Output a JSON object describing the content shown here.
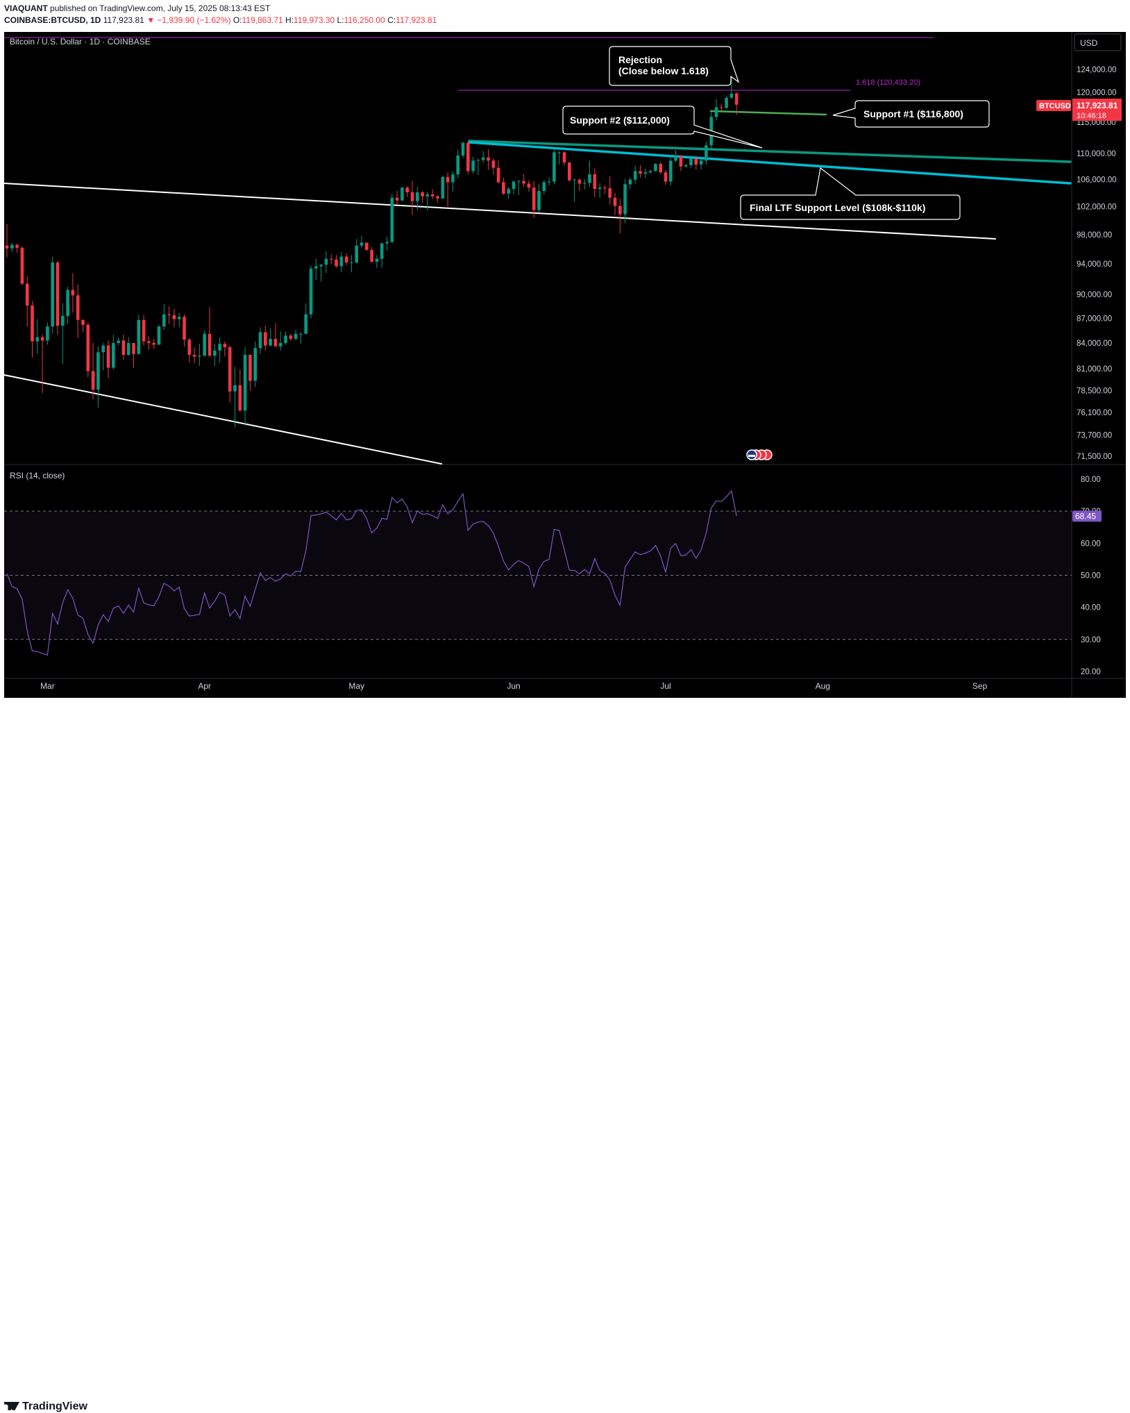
{
  "header": {
    "author": "VIAQUANT",
    "published": "published on TradingView.com, July 15, 2025 08:13:43 EST",
    "symbol": "COINBASE:BTCUSD, 1D",
    "last": "117,923.81",
    "change": "▼ −1,939.90 (−1.62%)",
    "o_label": "O:",
    "o_val": "119,863.71",
    "h_label": "H:",
    "h_val": "119,973.30",
    "l_label": "L:",
    "l_val": "116,250.00",
    "c_label": "C:",
    "c_val": "117,923.81"
  },
  "footer": {
    "brand": "TradingView"
  },
  "main_pane": {
    "title": "Bitcoin / U.S. Dollar · 1D · COINBASE",
    "currency_button": "USD",
    "price_label_symbol": "BTCUSD",
    "price_label_value": "117,923.81",
    "price_label_timer": "10:46:18",
    "y_ticks": [
      "124,000.00",
      "120,000.00",
      "115,000.00",
      "110,000.00",
      "106,000.00",
      "102,000.00",
      "98,000.00",
      "94,000.00",
      "90,000.00",
      "87,000.00",
      "84,000.00",
      "81,000.00",
      "78,500.00",
      "76,100.00",
      "73,700.00",
      "71,500.00"
    ],
    "annotations": {
      "rejection_line1": "Rejection",
      "rejection_line2": "(Close below 1.618)",
      "support2": "Support #2 ($112,000)",
      "support1": "Support #1 ($116,800)",
      "final_ltf": "Final LTF Support Level ($108k-$110k)",
      "fib_label": "1.618 (120,433.20)"
    }
  },
  "rsi_pane": {
    "title": "RSI (14, close)",
    "y_ticks": [
      "80.00",
      "70.00",
      "60.00",
      "50.00",
      "40.00",
      "30.00",
      "20.00"
    ],
    "current": "68.45"
  },
  "x_axis": {
    "labels": [
      "Mar",
      "Apr",
      "May",
      "Jun",
      "Jul",
      "Aug",
      "Sep"
    ]
  },
  "colors": {
    "up": "#089981",
    "down": "#f23645",
    "rsi": "#7e57c2",
    "fib": "#c026d3",
    "support_green": "#4caf50",
    "channel_cyan": "#00bcd4",
    "channel_teal": "#089981"
  },
  "chart_data": {
    "type": "candlestick",
    "title": "Bitcoin / U.S. Dollar · 1D · COINBASE",
    "x_range": [
      "2025-02-21",
      "2025-07-15"
    ],
    "y_axis": "log price, USD",
    "ylim": [
      71000,
      125000
    ],
    "candles": [
      [
        "2025-02-21",
        96500,
        99500,
        94900,
        96100
      ],
      [
        "2025-02-22",
        96100,
        96900,
        95600,
        96600
      ],
      [
        "2025-02-23",
        96600,
        96800,
        95500,
        96200
      ],
      [
        "2025-02-24",
        96200,
        96400,
        91200,
        91400
      ],
      [
        "2025-02-25",
        91400,
        92400,
        86000,
        88600
      ],
      [
        "2025-02-26",
        88600,
        89200,
        82300,
        84200
      ],
      [
        "2025-02-27",
        84200,
        86900,
        82700,
        84700
      ],
      [
        "2025-02-28",
        84700,
        85000,
        78200,
        84300
      ],
      [
        "2025-03-01",
        84300,
        86500,
        83800,
        86000
      ],
      [
        "2025-03-02",
        86000,
        95000,
        85200,
        94200
      ],
      [
        "2025-03-03",
        94200,
        94400,
        85000,
        86100
      ],
      [
        "2025-03-04",
        86100,
        88900,
        81500,
        87300
      ],
      [
        "2025-03-05",
        87300,
        91000,
        86300,
        90600
      ],
      [
        "2025-03-06",
        90600,
        92800,
        87700,
        89900
      ],
      [
        "2025-03-07",
        89900,
        91300,
        84600,
        86800
      ],
      [
        "2025-03-08",
        86800,
        86900,
        85300,
        86200
      ],
      [
        "2025-03-09",
        86200,
        86500,
        80000,
        80700
      ],
      [
        "2025-03-10",
        80700,
        84000,
        77500,
        78600
      ],
      [
        "2025-03-11",
        78600,
        83600,
        76600,
        82900
      ],
      [
        "2025-03-12",
        82900,
        84000,
        80800,
        83700
      ],
      [
        "2025-03-13",
        83700,
        84300,
        79900,
        81100
      ],
      [
        "2025-03-14",
        81100,
        85000,
        80900,
        84000
      ],
      [
        "2025-03-15",
        84000,
        84700,
        83700,
        84300
      ],
      [
        "2025-03-16",
        84300,
        85000,
        82000,
        82600
      ],
      [
        "2025-03-17",
        82600,
        84700,
        82500,
        84000
      ],
      [
        "2025-03-18",
        84000,
        84000,
        81100,
        82700
      ],
      [
        "2025-03-19",
        82700,
        87400,
        82600,
        86800
      ],
      [
        "2025-03-20",
        86800,
        87400,
        83700,
        84200
      ],
      [
        "2025-03-21",
        84200,
        84800,
        83200,
        84000
      ],
      [
        "2025-03-22",
        84000,
        84500,
        83300,
        83800
      ],
      [
        "2025-03-23",
        83800,
        86200,
        83800,
        86000
      ],
      [
        "2025-03-24",
        86000,
        88800,
        85600,
        87500
      ],
      [
        "2025-03-25",
        87500,
        88500,
        86300,
        87400
      ],
      [
        "2025-03-26",
        87400,
        88200,
        85900,
        86900
      ],
      [
        "2025-03-27",
        86900,
        87700,
        85900,
        87200
      ],
      [
        "2025-03-28",
        87200,
        87500,
        83600,
        84400
      ],
      [
        "2025-03-29",
        84400,
        84600,
        81700,
        82600
      ],
      [
        "2025-03-30",
        82600,
        83500,
        81600,
        82400
      ],
      [
        "2025-03-31",
        82400,
        83900,
        81300,
        82500
      ],
      [
        "2025-04-01",
        82500,
        85500,
        82400,
        85100
      ],
      [
        "2025-04-02",
        85100,
        88400,
        82300,
        82500
      ],
      [
        "2025-04-03",
        82500,
        83900,
        81300,
        83100
      ],
      [
        "2025-04-04",
        83100,
        84700,
        81700,
        83900
      ],
      [
        "2025-04-05",
        83900,
        84200,
        82400,
        83500
      ],
      [
        "2025-04-06",
        83500,
        83700,
        77200,
        78400
      ],
      [
        "2025-04-07",
        78400,
        81200,
        74500,
        79100
      ],
      [
        "2025-04-08",
        79100,
        80900,
        76200,
        76300
      ],
      [
        "2025-04-09",
        76300,
        83500,
        74600,
        82600
      ],
      [
        "2025-04-10",
        82600,
        82700,
        78500,
        79600
      ],
      [
        "2025-04-11",
        79600,
        84200,
        78900,
        83400
      ],
      [
        "2025-04-12",
        83400,
        85900,
        82700,
        85300
      ],
      [
        "2025-04-13",
        85300,
        86100,
        83100,
        83700
      ],
      [
        "2025-04-14",
        83700,
        85800,
        83600,
        84500
      ],
      [
        "2025-04-15",
        84500,
        86400,
        83600,
        83600
      ],
      [
        "2025-04-16",
        83600,
        85400,
        83100,
        84000
      ],
      [
        "2025-04-17",
        84000,
        85400,
        83800,
        84900
      ],
      [
        "2025-04-18",
        84900,
        85100,
        84300,
        84500
      ],
      [
        "2025-04-19",
        84500,
        85600,
        84300,
        85100
      ],
      [
        "2025-04-20",
        85100,
        85300,
        83900,
        85100
      ],
      [
        "2025-04-21",
        85100,
        88900,
        85100,
        87500
      ],
      [
        "2025-04-22",
        87500,
        93800,
        87000,
        93400
      ],
      [
        "2025-04-23",
        93400,
        94700,
        91900,
        93700
      ],
      [
        "2025-04-24",
        93700,
        94000,
        91700,
        93900
      ],
      [
        "2025-04-25",
        93900,
        95700,
        92800,
        94700
      ],
      [
        "2025-04-26",
        94700,
        95300,
        93900,
        94600
      ],
      [
        "2025-04-27",
        94600,
        95200,
        93500,
        93700
      ],
      [
        "2025-04-28",
        93700,
        95600,
        92900,
        95000
      ],
      [
        "2025-04-29",
        95000,
        95400,
        93800,
        94200
      ],
      [
        "2025-04-30",
        94200,
        95200,
        92900,
        94200
      ],
      [
        "2025-05-01",
        94200,
        97400,
        94100,
        96500
      ],
      [
        "2025-05-02",
        96500,
        97900,
        96200,
        96900
      ],
      [
        "2025-05-03",
        96900,
        96900,
        95800,
        95900
      ],
      [
        "2025-05-04",
        95900,
        96300,
        94200,
        94300
      ],
      [
        "2025-05-05",
        94300,
        95200,
        93500,
        94700
      ],
      [
        "2025-05-06",
        94700,
        96900,
        93500,
        96800
      ],
      [
        "2025-05-07",
        96800,
        97700,
        95800,
        97000
      ],
      [
        "2025-05-08",
        97000,
        103900,
        96900,
        103300
      ],
      [
        "2025-05-09",
        103300,
        104300,
        102300,
        102900
      ],
      [
        "2025-05-10",
        102900,
        104900,
        102800,
        104800
      ],
      [
        "2025-05-11",
        104800,
        105000,
        103400,
        104100
      ],
      [
        "2025-05-12",
        104100,
        105800,
        100800,
        102800
      ],
      [
        "2025-05-13",
        102800,
        104900,
        101500,
        104100
      ],
      [
        "2025-05-14",
        104100,
        104300,
        102600,
        103500
      ],
      [
        "2025-05-15",
        103500,
        104200,
        101400,
        103800
      ],
      [
        "2025-05-16",
        103800,
        104600,
        103100,
        103500
      ],
      [
        "2025-05-17",
        103500,
        103700,
        102600,
        103200
      ],
      [
        "2025-05-18",
        103200,
        106600,
        103100,
        106400
      ],
      [
        "2025-05-19",
        106400,
        107100,
        102000,
        105600
      ],
      [
        "2025-05-20",
        105600,
        107300,
        104200,
        106800
      ],
      [
        "2025-05-21",
        106800,
        110700,
        106200,
        109700
      ],
      [
        "2025-05-22",
        109700,
        111900,
        109300,
        111700
      ],
      [
        "2025-05-23",
        111700,
        111800,
        106800,
        107300
      ],
      [
        "2025-05-24",
        107300,
        109500,
        106900,
        108900
      ],
      [
        "2025-05-25",
        108900,
        109200,
        106700,
        109000
      ],
      [
        "2025-05-26",
        109000,
        110400,
        108600,
        109400
      ],
      [
        "2025-05-27",
        109400,
        110700,
        107500,
        108900
      ],
      [
        "2025-05-28",
        108900,
        109300,
        106800,
        107800
      ],
      [
        "2025-05-29",
        107800,
        108900,
        105400,
        105600
      ],
      [
        "2025-05-30",
        105600,
        106300,
        103700,
        103900
      ],
      [
        "2025-05-31",
        103900,
        104900,
        103100,
        104600
      ],
      [
        "2025-06-01",
        104600,
        105900,
        103800,
        105700
      ],
      [
        "2025-06-02",
        105700,
        105900,
        103700,
        105800
      ],
      [
        "2025-06-03",
        105800,
        106800,
        104900,
        105400
      ],
      [
        "2025-06-04",
        105400,
        105900,
        104200,
        104800
      ],
      [
        "2025-06-05",
        104800,
        105800,
        100400,
        101500
      ],
      [
        "2025-06-06",
        101500,
        105400,
        101100,
        104300
      ],
      [
        "2025-06-07",
        104300,
        105900,
        103800,
        105600
      ],
      [
        "2025-06-08",
        105600,
        106300,
        105100,
        105700
      ],
      [
        "2025-06-09",
        105700,
        110600,
        105300,
        110200
      ],
      [
        "2025-06-10",
        110200,
        110400,
        108300,
        110200
      ],
      [
        "2025-06-11",
        110200,
        110400,
        108100,
        108600
      ],
      [
        "2025-06-12",
        108600,
        108700,
        105700,
        105900
      ],
      [
        "2025-06-13",
        105900,
        106200,
        102700,
        106000
      ],
      [
        "2025-06-14",
        106000,
        106200,
        104300,
        105400
      ],
      [
        "2025-06-15",
        105400,
        106100,
        104500,
        105500
      ],
      [
        "2025-06-16",
        105500,
        108900,
        104900,
        106800
      ],
      [
        "2025-06-17",
        106800,
        107700,
        103400,
        104600
      ],
      [
        "2025-06-18",
        104600,
        105500,
        103300,
        104800
      ],
      [
        "2025-06-19",
        104800,
        105200,
        103900,
        104700
      ],
      [
        "2025-06-20",
        104700,
        106500,
        102300,
        103300
      ],
      [
        "2025-06-21",
        103300,
        104000,
        100800,
        102100
      ],
      [
        "2025-06-22",
        102100,
        103100,
        98200,
        100900
      ],
      [
        "2025-06-23",
        100900,
        106100,
        99600,
        105300
      ],
      [
        "2025-06-24",
        105300,
        106300,
        104600,
        106000
      ],
      [
        "2025-06-25",
        106000,
        108100,
        105400,
        107300
      ],
      [
        "2025-06-26",
        107300,
        108200,
        106300,
        106900
      ],
      [
        "2025-06-27",
        106900,
        107700,
        106200,
        107100
      ],
      [
        "2025-06-28",
        107100,
        107500,
        106900,
        107300
      ],
      [
        "2025-06-29",
        107300,
        108500,
        107200,
        108400
      ],
      [
        "2025-06-30",
        108400,
        108700,
        106800,
        107100
      ],
      [
        "2025-07-01",
        107100,
        107500,
        105200,
        105700
      ],
      [
        "2025-07-02",
        105700,
        109800,
        105100,
        108900
      ],
      [
        "2025-07-03",
        108900,
        110500,
        108600,
        109600
      ],
      [
        "2025-07-04",
        109600,
        109800,
        107300,
        108000
      ],
      [
        "2025-07-05",
        108000,
        108400,
        107800,
        108200
      ],
      [
        "2025-07-06",
        108200,
        109700,
        107800,
        109200
      ],
      [
        "2025-07-07",
        109200,
        109700,
        107500,
        108300
      ],
      [
        "2025-07-08",
        108300,
        109200,
        107500,
        108900
      ],
      [
        "2025-07-09",
        108900,
        111900,
        108300,
        111300
      ],
      [
        "2025-07-10",
        111300,
        116800,
        110600,
        115900
      ],
      [
        "2025-07-11",
        115900,
        118900,
        115300,
        117500
      ],
      [
        "2025-07-12",
        117500,
        118100,
        116900,
        117400
      ],
      [
        "2025-07-13",
        117400,
        119500,
        117200,
        119100
      ],
      [
        "2025-07-14",
        119100,
        123200,
        118900,
        119800
      ],
      [
        "2025-07-15",
        119863.71,
        119973.3,
        116250.0,
        117923.81
      ]
    ],
    "rsi": {
      "name": "RSI (14, close)",
      "ylim": [
        18,
        83
      ],
      "bands": [
        30,
        50,
        70
      ],
      "values": [
        50.5,
        46.5,
        45.8,
        42.6,
        32.6,
        26.4,
        26.2,
        25.6,
        25.1,
        38.1,
        34.8,
        41.4,
        45.5,
        42.8,
        37.6,
        36.6,
        31.5,
        28.8,
        34.5,
        37.7,
        35.6,
        39.7,
        40.5,
        38.1,
        40.7,
        38.5,
        45.9,
        41.4,
        40.8,
        40.5,
        43.3,
        47.5,
        46.6,
        45.1,
        46.3,
        39.6,
        37.3,
        37.5,
        37.8,
        44.5,
        39.8,
        41.9,
        44.7,
        43.8,
        37.3,
        39.3,
        36.5,
        43.5,
        40.3,
        45.5,
        50.8,
        48.4,
        49.3,
        48.1,
        48.9,
        50.5,
        49.8,
        51.3,
        51.1,
        57.7,
        68.6,
        68.8,
        69.2,
        69.7,
        68.6,
        67.3,
        69.3,
        67.3,
        67.6,
        70.2,
        70.4,
        67.6,
        63.2,
        64.7,
        67.8,
        67.4,
        74.3,
        72.6,
        73.8,
        71.3,
        66.4,
        70.1,
        69.0,
        69.2,
        68.6,
        67.7,
        72.0,
        69.2,
        70.4,
        73.1,
        75.4,
        64.0,
        66.0,
        66.6,
        66.8,
        65.5,
        63.2,
        59.0,
        54.4,
        51.7,
        53.4,
        54.6,
        53.8,
        52.7,
        46.4,
        51.9,
        54.3,
        55.0,
        64.3,
        64.0,
        58.0,
        51.6,
        51.5,
        50.5,
        51.8,
        50.5,
        55.2,
        51.5,
        50.6,
        48.5,
        43.8,
        40.6,
        52.6,
        55.0,
        57.3,
        56.4,
        56.9,
        57.6,
        59.3,
        56.1,
        50.9,
        58.5,
        59.9,
        56.1,
        56.3,
        58.0,
        55.3,
        57.9,
        63.1,
        71.0,
        73.2,
        73.0,
        74.5,
        76.3,
        68.5
      ]
    },
    "series": [
      {
        "name": "Support #1 ($116,800)",
        "values": [
          116800
        ]
      },
      {
        "name": "Support #2 ($112,000)",
        "values": [
          112000
        ]
      },
      {
        "name": "Final LTF Support Level ($108k-$110k)",
        "values": [
          108000,
          110000
        ]
      },
      {
        "name": "1.618 (120,433.20)",
        "values": [
          120433.2
        ]
      }
    ]
  }
}
